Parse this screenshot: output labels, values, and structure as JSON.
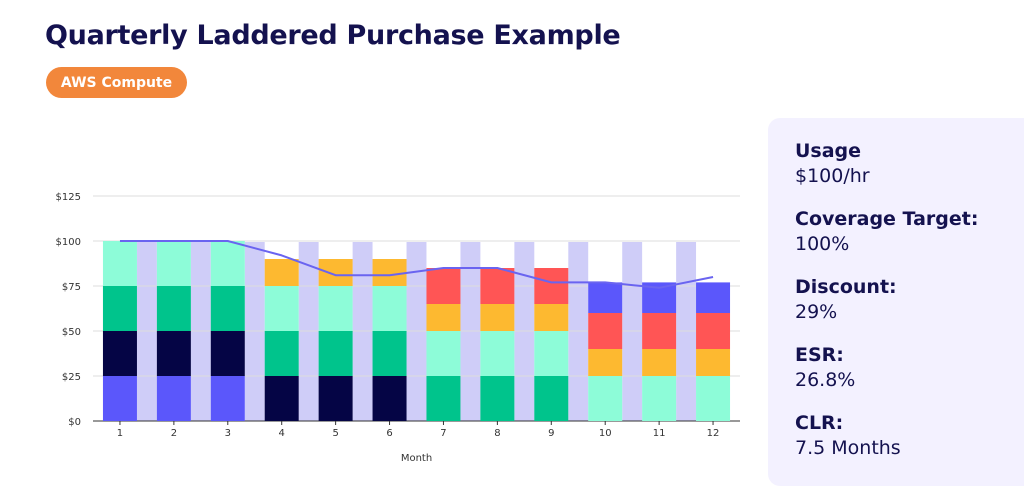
{
  "header": {
    "title": "Quarterly Laddered Purchase Example",
    "badge": "AWS Compute"
  },
  "colors": {
    "title": "#14124f",
    "badge": "#f2873b",
    "panel_bg": "#f3f1ff",
    "gap": "#cfcdf8",
    "line": "#6a64f0",
    "grid": "#dddddd",
    "axis": "#333333"
  },
  "stats": [
    {
      "label": "Usage",
      "value": "$100/hr"
    },
    {
      "label": "Coverage Target:",
      "value": "100%"
    },
    {
      "label": "Discount:",
      "value": "29%"
    },
    {
      "label": "ESR:",
      "value": "26.8%"
    },
    {
      "label": "CLR:",
      "value": "7.5 Months"
    }
  ],
  "chart_data": {
    "type": "bar",
    "stacked": true,
    "xlabel": "Month",
    "ylabel": "",
    "ylim": [
      0,
      125
    ],
    "yticks": [
      "$0",
      "$25",
      "$50",
      "$75",
      "$100",
      "$125"
    ],
    "grid": true,
    "categories": [
      "1",
      "2",
      "3",
      "4",
      "5",
      "6",
      "7",
      "8",
      "9",
      "10",
      "11",
      "12"
    ],
    "series": [
      {
        "color": "#5b57fb",
        "values": [
          25,
          25,
          25,
          0,
          0,
          0,
          0,
          0,
          0,
          0,
          0,
          0
        ]
      },
      {
        "color": "#050545",
        "values": [
          25,
          25,
          25,
          25,
          25,
          25,
          0,
          0,
          0,
          0,
          0,
          0
        ]
      },
      {
        "color": "#00c48c",
        "values": [
          25,
          25,
          25,
          25,
          25,
          25,
          25,
          25,
          25,
          0,
          0,
          0
        ]
      },
      {
        "color": "#8dfcd8",
        "values": [
          25,
          25,
          25,
          25,
          25,
          25,
          25,
          25,
          25,
          25,
          25,
          25
        ]
      },
      {
        "color": "#fdb930",
        "values": [
          0,
          0,
          0,
          15,
          15,
          15,
          15,
          15,
          15,
          15,
          15,
          15
        ]
      },
      {
        "color": "#ff5555",
        "values": [
          0,
          0,
          0,
          0,
          0,
          0,
          20,
          20,
          20,
          20,
          20,
          20
        ]
      },
      {
        "color": "#5b57fb",
        "values": [
          0,
          0,
          0,
          0,
          0,
          0,
          0,
          0,
          0,
          17,
          17,
          17
        ]
      }
    ],
    "line": [
      100,
      100,
      100,
      92,
      81,
      81,
      85,
      85,
      77,
      77,
      74,
      80
    ]
  }
}
